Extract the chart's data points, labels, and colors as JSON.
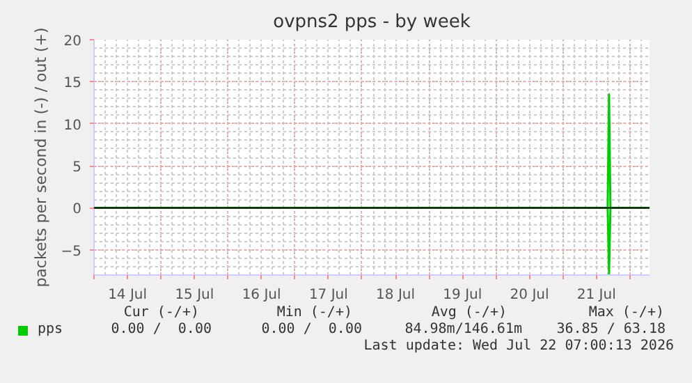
{
  "chart_data": {
    "type": "line",
    "title": "ovpns2 pps - by week",
    "ylabel": "packets per second in (-) / out (+)",
    "xlim": [
      "2026-07-14T00:00",
      "2026-07-22T07:00"
    ],
    "ylim": [
      -8,
      20
    ],
    "yticks": [
      -5,
      0,
      5,
      10,
      15,
      20
    ],
    "xticks": [
      {
        "value": "2026-07-14T00:00",
        "label": null
      },
      {
        "value": "2026-07-14T12:00",
        "label": "14 Jul"
      },
      {
        "value": "2026-07-15T00:00",
        "label": null
      },
      {
        "value": "2026-07-15T12:00",
        "label": "15 Jul"
      },
      {
        "value": "2026-07-16T00:00",
        "label": null
      },
      {
        "value": "2026-07-16T12:00",
        "label": "16 Jul"
      },
      {
        "value": "2026-07-17T00:00",
        "label": null
      },
      {
        "value": "2026-07-17T12:00",
        "label": "17 Jul"
      },
      {
        "value": "2026-07-18T00:00",
        "label": null
      },
      {
        "value": "2026-07-18T12:00",
        "label": "18 Jul"
      },
      {
        "value": "2026-07-19T00:00",
        "label": null
      },
      {
        "value": "2026-07-19T12:00",
        "label": "19 Jul"
      },
      {
        "value": "2026-07-20T00:00",
        "label": null
      },
      {
        "value": "2026-07-20T12:00",
        "label": "20 Jul"
      },
      {
        "value": "2026-07-21T00:00",
        "label": null
      },
      {
        "value": "2026-07-21T12:00",
        "label": "21 Jul"
      },
      {
        "value": "2026-07-22T00:00",
        "label": null
      }
    ],
    "grid": true,
    "legend": "bottom",
    "series": [
      {
        "name": "pps",
        "color": "#00cc00",
        "x": [
          "2026-07-14T00:00",
          "2026-07-21T16:00",
          "2026-07-21T16:30",
          "2026-07-21T17:00",
          "2026-07-22T07:00"
        ],
        "values": [
          0,
          0,
          13.5,
          0,
          0
        ]
      },
      {
        "color": "#00cc00",
        "x": [
          "2026-07-14T00:00",
          "2026-07-21T16:00",
          "2026-07-21T16:30",
          "2026-07-21T17:00",
          "2026-07-22T07:00"
        ],
        "values": [
          0,
          0,
          -7.9,
          0,
          0
        ]
      }
    ],
    "ref_lines": [
      {
        "axis": "y",
        "value": 0,
        "color": "#000000"
      }
    ],
    "annotations": [
      "Cur (-/+)",
      "Min (-/+)",
      "Avg (-/+)",
      "Max (-/+)",
      "0.00 /  0.00",
      "0.00 /  0.00",
      "84.98m/146.61m",
      "36.85 / 63.18",
      "Last update: Wed Jul 22 07:00:13 2026"
    ]
  }
}
